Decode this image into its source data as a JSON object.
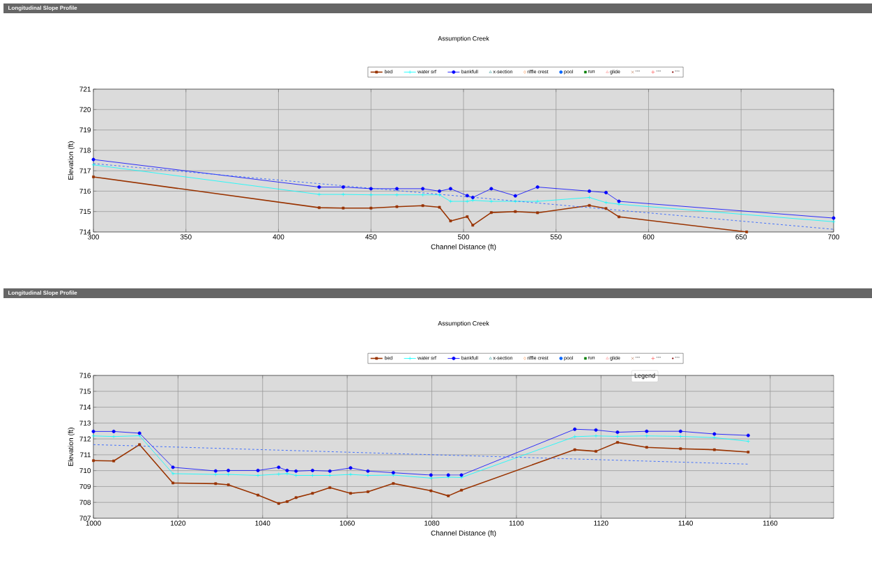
{
  "chart_data": [
    {
      "type": "line",
      "title": "Longitudinal Slope Profile",
      "subtitle": "Assumption Creek",
      "xlabel": "Channel Distance (ft)",
      "ylabel": "Elevation (ft)",
      "xlim": [
        300,
        700
      ],
      "ylim": [
        714,
        721
      ],
      "xticks": [
        300,
        350,
        400,
        450,
        500,
        550,
        600,
        650,
        700
      ],
      "yticks": [
        714,
        715,
        716,
        717,
        718,
        719,
        720,
        721
      ],
      "grid": true,
      "legend": "top",
      "series": [
        {
          "name": "bed",
          "color": "#993300",
          "marker": "square",
          "line_style": "solid",
          "x": [
            300,
            422,
            435,
            450,
            464,
            478,
            487,
            493,
            502,
            505,
            515,
            528,
            540,
            568,
            577,
            584,
            653
          ],
          "values": [
            716.7,
            715.19,
            715.17,
            715.17,
            715.24,
            715.29,
            715.21,
            714.54,
            714.75,
            714.33,
            714.95,
            715.0,
            714.94,
            715.3,
            715.15,
            714.74,
            714.0
          ]
        },
        {
          "name": "water srf",
          "color": "#00ffff",
          "marker": "cross",
          "line_style": "solid",
          "x": [
            300,
            422,
            435,
            450,
            464,
            478,
            487,
            493,
            502,
            505,
            515,
            528,
            540,
            568,
            577,
            584,
            700
          ],
          "values": [
            717.29,
            715.84,
            715.84,
            715.82,
            715.82,
            715.82,
            715.82,
            715.5,
            715.5,
            715.55,
            715.5,
            715.5,
            715.5,
            715.69,
            715.44,
            715.36,
            714.5
          ]
        },
        {
          "name": "bankfull",
          "color": "#0000ff",
          "marker": "circle",
          "line_style": "solid",
          "x": [
            300,
            422,
            435,
            450,
            464,
            478,
            487,
            493,
            502,
            505,
            515,
            528,
            540,
            568,
            577,
            584,
            700
          ],
          "values": [
            717.55,
            716.2,
            716.2,
            716.12,
            716.12,
            716.12,
            716.0,
            716.12,
            715.78,
            715.69,
            716.12,
            715.77,
            716.2,
            716.0,
            715.93,
            715.5,
            714.68
          ]
        },
        {
          "name": "x-section",
          "color": "#008080",
          "marker": "triangle"
        },
        {
          "name": "riffle crest",
          "color": "#ff6600",
          "marker": "diamond"
        },
        {
          "name": "pool",
          "color": "#0066ff",
          "marker": "circle"
        },
        {
          "name": "run",
          "color": "#008000",
          "marker": "square"
        },
        {
          "name": "glide",
          "color": "#ff6666",
          "marker": "triangle"
        },
        {
          "name": "---",
          "color": "#993300",
          "marker": "x"
        },
        {
          "name": "---",
          "color": "#ff0000",
          "marker": "cross"
        },
        {
          "name": "---",
          "color": "#800000",
          "marker": "dot"
        },
        {
          "color": "#3366ff",
          "marker": "none",
          "line_style": "dashed",
          "x": [
            300,
            700
          ],
          "values": [
            717.35,
            714.13
          ]
        }
      ]
    },
    {
      "type": "line",
      "title": "Longitudinal Slope Profile",
      "subtitle": "Assumption Creek",
      "xlabel": "Channel Distance (ft)",
      "ylabel": "Elevation (ft)",
      "xlim": [
        1000,
        1175
      ],
      "ylim": [
        707,
        716
      ],
      "xticks": [
        1000,
        1020,
        1040,
        1060,
        1080,
        1100,
        1120,
        1140,
        1160
      ],
      "yticks": [
        707,
        708,
        709,
        710,
        711,
        712,
        713,
        714,
        715,
        716
      ],
      "grid": true,
      "legend": "top",
      "annotations": [
        "Legend"
      ],
      "series": [
        {
          "name": "bed",
          "color": "#993300",
          "marker": "square",
          "line_style": "solid",
          "x": [
            1000,
            1004.8,
            1010.9,
            1018.8,
            1028.9,
            1031.9,
            1038.9,
            1043.8,
            1045.8,
            1047.9,
            1051.8,
            1055.9,
            1060.8,
            1064.9,
            1070.9,
            1079.8,
            1083.9,
            1087,
            1113.8,
            1118.8,
            1123.9,
            1130.8,
            1138.8,
            1146.8,
            1154.8
          ],
          "values": [
            710.63,
            710.61,
            711.64,
            709.22,
            709.18,
            709.11,
            708.46,
            707.93,
            708.05,
            708.3,
            708.57,
            708.93,
            708.57,
            708.67,
            709.19,
            708.73,
            708.41,
            708.77,
            711.32,
            711.22,
            711.78,
            711.47,
            711.38,
            711.32,
            711.17
          ]
        },
        {
          "name": "water srf",
          "color": "#00ffff",
          "marker": "cross",
          "line_style": "solid",
          "x": [
            1000,
            1004.8,
            1010.9,
            1018.8,
            1028.9,
            1031.9,
            1038.9,
            1043.8,
            1045.8,
            1047.9,
            1051.8,
            1055.9,
            1060.8,
            1064.9,
            1070.9,
            1079.8,
            1083.9,
            1087,
            1113.8,
            1118.8,
            1123.9,
            1130.8,
            1138.8,
            1146.8,
            1154.8
          ],
          "values": [
            712.19,
            712.15,
            712.2,
            709.81,
            709.76,
            709.76,
            709.7,
            709.78,
            709.81,
            709.7,
            709.7,
            709.7,
            709.76,
            709.7,
            709.72,
            709.53,
            709.59,
            709.57,
            712.14,
            712.19,
            712.16,
            712.19,
            712.16,
            712.08,
            711.85
          ]
        },
        {
          "name": "bankfull",
          "color": "#0000ff",
          "marker": "circle",
          "line_style": "solid",
          "x": [
            1000,
            1004.8,
            1010.9,
            1018.8,
            1028.9,
            1031.9,
            1038.9,
            1043.8,
            1045.8,
            1047.9,
            1051.8,
            1055.9,
            1060.8,
            1064.9,
            1070.9,
            1079.8,
            1083.9,
            1087,
            1113.8,
            1118.8,
            1123.9,
            1130.8,
            1138.8,
            1146.8,
            1154.8
          ],
          "values": [
            712.47,
            712.47,
            712.36,
            710.21,
            709.98,
            710.01,
            710.01,
            710.21,
            710.01,
            709.97,
            710.01,
            709.97,
            710.17,
            709.97,
            709.87,
            709.72,
            709.72,
            709.72,
            712.61,
            712.56,
            712.42,
            712.48,
            712.48,
            712.31,
            712.22
          ]
        },
        {
          "name": "x-section",
          "color": "#008080",
          "marker": "triangle"
        },
        {
          "name": "riffle crest",
          "color": "#ff6600",
          "marker": "diamond"
        },
        {
          "name": "pool",
          "color": "#0066ff",
          "marker": "circle"
        },
        {
          "name": "run",
          "color": "#008000",
          "marker": "square"
        },
        {
          "name": "glide",
          "color": "#ff6666",
          "marker": "triangle"
        },
        {
          "name": "---",
          "color": "#993300",
          "marker": "x"
        },
        {
          "name": "---",
          "color": "#ff0000",
          "marker": "cross"
        },
        {
          "name": "---",
          "color": "#800000",
          "marker": "dot"
        },
        {
          "color": "#3366ff",
          "marker": "none",
          "line_style": "dashed",
          "x": [
            1000,
            1154.8
          ],
          "values": [
            711.64,
            710.41
          ]
        }
      ]
    }
  ]
}
